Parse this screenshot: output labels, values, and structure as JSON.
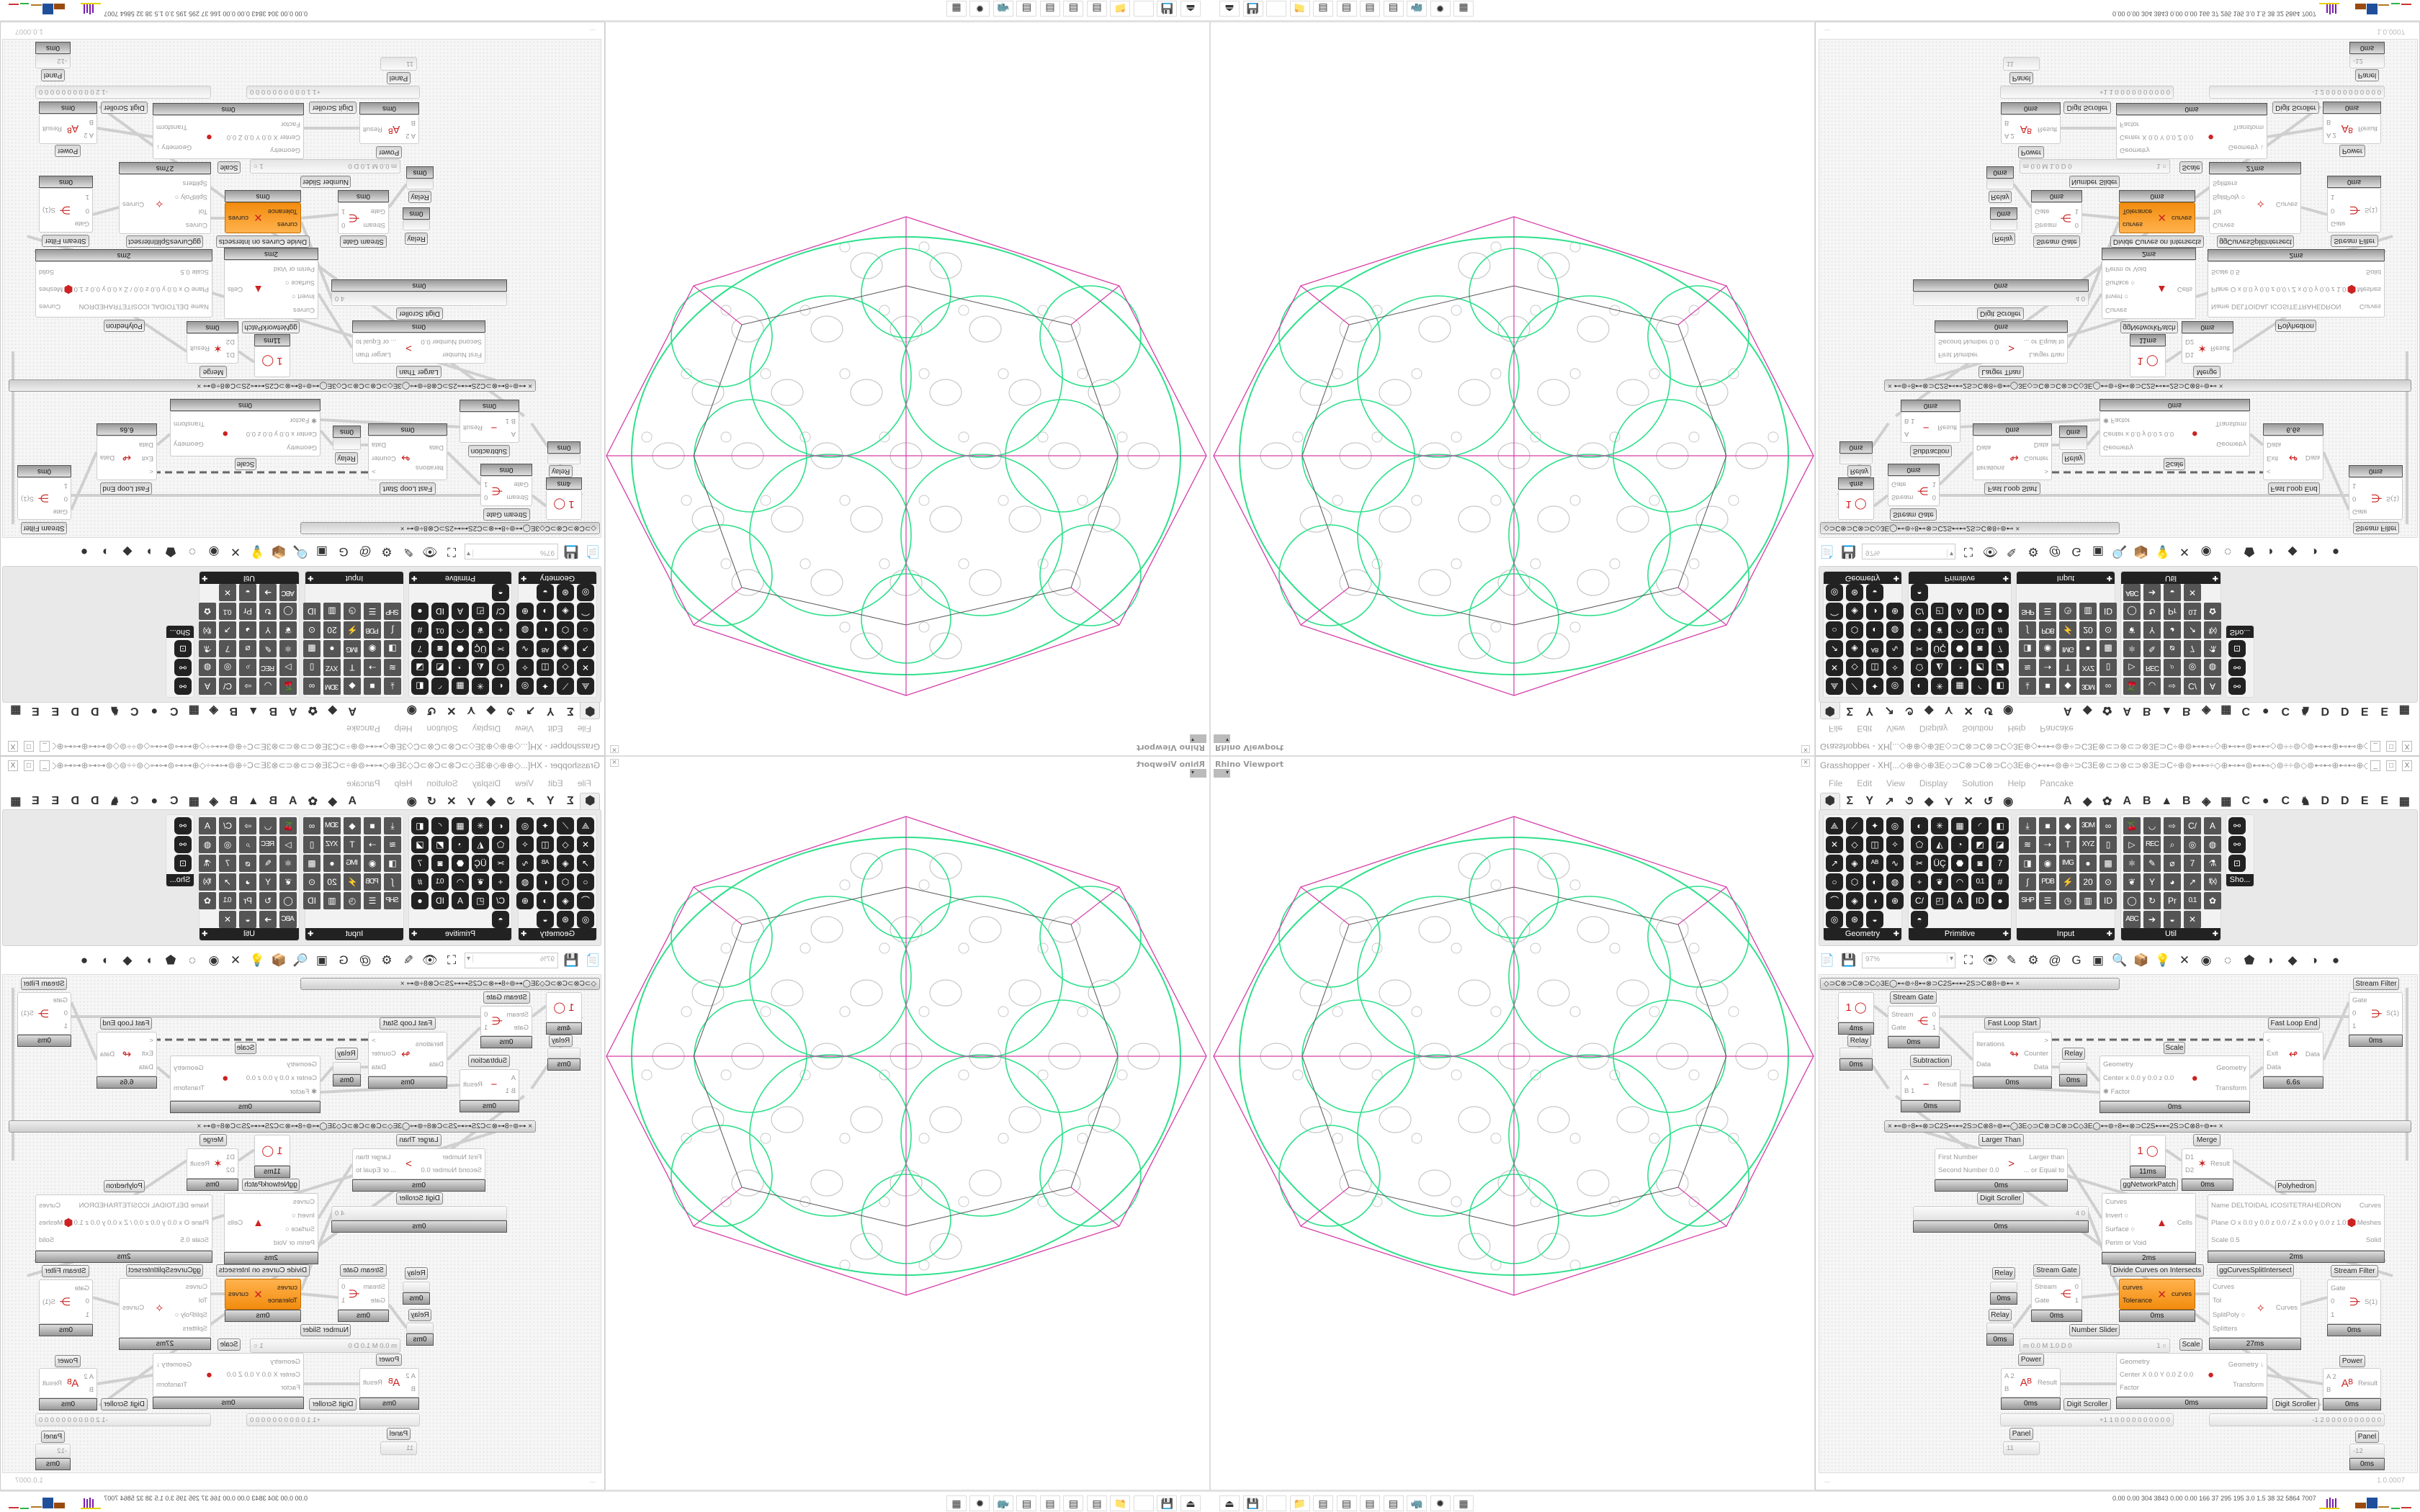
{
  "viewport": {
    "title": "Rhino Viewport",
    "colors": {
      "outer_polygon": "#d63ca8",
      "network": "#2ee08a",
      "circles": "#c8c8c8",
      "inner_polygon": "#555555"
    }
  },
  "taskbar": {
    "icons": [
      "uplink-icon",
      "save-64-icon",
      "blank-icon",
      "folder-icon",
      "notepad-icon",
      "notepad-icon",
      "notepad-icon",
      "notepad-icon",
      "rhino-icon",
      "red-app-icon",
      "calculator-icon"
    ],
    "stats": "0.00 0.00 304 3843 0.00 0.00 166 37 295 195 3.0 1.5 38 32 5864 7007"
  },
  "grasshopper": {
    "title": "Grasshopper - XH[...◇⊕⊕◇⊕3E◇⊃C⊗⊃C⊗⊃C◇3E⊕◇⊷⊷⊚⊕÷⊃C3E⊗⊂⊃⊗⊂⊃⊗3E⊃C÷⊕⊚⊷⊷÷◇⊕⊷⊷⊚⊷⊷◇⊚÷÷⊚◇⊚⊷⊷⊕⊷⊷⊕◇⊷⊷⊚⊕÷⊃C3E⊗⊂⊃⊗⊂...",
    "window_buttons": [
      "_",
      "□",
      "X"
    ],
    "menu": [
      "File",
      "Edit",
      "View",
      "Display",
      "Solution",
      "Help",
      "Pancake"
    ],
    "tabs": [
      "⬢",
      "Σ",
      "Y",
      "↗",
      "૭",
      "◆",
      "⋎",
      "✕",
      "↺",
      "◉",
      "",
      "",
      "A",
      "◆",
      "✿",
      "A",
      "B",
      "▲",
      "B",
      "◈",
      "▦",
      "C",
      "●",
      "C",
      "♞",
      "D",
      "D",
      "E",
      "E",
      "▦"
    ],
    "palette": [
      {
        "label": "Geometry",
        "glyphs": [
          "⟁",
          "⟋",
          "✦",
          "◎",
          "✕",
          "◇",
          "◫",
          "✧",
          "↗",
          "◈",
          "ᴬᴮ",
          "∿",
          "○",
          "⬡",
          "◐",
          "◍",
          "⌒",
          "◈",
          "◑",
          "⊕",
          "◎",
          "⊛",
          "◒"
        ]
      },
      {
        "label": "Primitive",
        "glyphs": [
          "◐",
          "✳",
          "▦",
          "◜",
          "◧",
          "⬠",
          "◭",
          "◔",
          "◩",
          "◪",
          "✂",
          "ÜÇ",
          "⬣",
          "◙",
          "7",
          "+",
          "❦",
          "◠",
          "0.1",
          "#",
          "C/",
          "◰",
          "A",
          "ID",
          "●",
          "◓"
        ]
      },
      {
        "label": "Input",
        "glyphs": [
          "⤓",
          "■",
          "◆",
          "3DM",
          "∞",
          "≋",
          "⇢",
          "T",
          "XYZ",
          "▯",
          "◨",
          "◉",
          "IMG",
          "●",
          "▩",
          "∫",
          "PDB",
          "⚡",
          "20",
          "⊙",
          "SHP",
          "☰",
          "◷",
          "▥",
          "ID"
        ]
      },
      {
        "label": "Util",
        "glyphs": [
          "🍒",
          "◡",
          "⇨",
          "C/",
          "A",
          "▷",
          "REC",
          "⌕",
          "◎",
          "◍",
          "⚛",
          "✎",
          "⌀",
          "7",
          "⚗",
          "❦",
          "Y",
          "◕",
          "↗",
          "f(x)",
          "◯",
          "↻",
          "Pr",
          "0.1",
          "✿",
          "ABC",
          "➔",
          "◒",
          "✕"
        ]
      },
      {
        "label": "Sho...",
        "glyphs": [
          "⚯",
          "⚯",
          "⊡"
        ]
      }
    ],
    "toolbar": {
      "zoom": "97%",
      "icons": [
        "new-file-icon",
        "save-icon",
        "zoom-extents-icon",
        "preview-eye-icon",
        "sketch-icon",
        "bake-icon",
        "email-icon",
        "gha-icon",
        "image-icon",
        "search-icon",
        "package-icon",
        "bulb-icon",
        "wire-icon",
        "bean-icon",
        "ring-icon",
        "red-gem-icon",
        "teal-icon",
        "green-icon",
        "orange-sphere-icon",
        "blue-sphere-icon"
      ]
    },
    "canvas": {
      "groups": [
        "◇⊃C⊗⊃C⊗⊃C◇3E◯⊷⊚÷8⊷⊗⊃C2S⊷⊷2S⊃C⊗8÷⊚⊷         ×",
        "×       ⊷⊚÷8⊷⊗⊃C2S⊷⊷2S⊃C⊗8÷⊚⊷◯3E◇⊃C⊗⊃C⊗⊃C◇3E◯⊷⊚÷8⊷⊗⊃C2S⊷⊷2S⊃C⊗8÷⊚⊷       ×"
      ],
      "nodes": [
        {
          "label": "",
          "inputs": [
            " ",
            " "
          ],
          "outputs": [],
          "icon": "1 ◯",
          "time": "4ms"
        },
        {
          "label": "Relay",
          "inputs": [],
          "outputs": [],
          "icon": "",
          "time": "0ms"
        },
        {
          "label": "Stream Gate",
          "inputs": [
            "Stream",
            "Gate"
          ],
          "outputs": [
            "0",
            "1"
          ],
          "icon": "⋲",
          "time": "0ms"
        },
        {
          "label": "Subtraction",
          "inputs": [
            "A",
            "B 1"
          ],
          "outputs": [
            "Result"
          ],
          "icon": "−",
          "time": "0ms"
        },
        {
          "label": "Fast Loop Start",
          "inputs": [
            "Iterations",
            "Data"
          ],
          "outputs": [
            ">",
            "Counter",
            "Data"
          ],
          "icon": "↬",
          "time": "0ms"
        },
        {
          "label": "Relay",
          "inputs": [],
          "outputs": [],
          "icon": "",
          "time": "0ms"
        },
        {
          "label": "Scale",
          "inputs": [
            "Geometry",
            "Center x 0.0 y 0.0 z 0.0",
            "✱ Factor"
          ],
          "outputs": [
            "Geometry",
            "Transform"
          ],
          "icon": "●",
          "time": "0ms"
        },
        {
          "label": "Fast Loop End",
          "inputs": [
            "<",
            "Exit",
            "Data"
          ],
          "outputs": [
            "Data"
          ],
          "icon": "↫",
          "time": "6.6s"
        },
        {
          "label": "Stream Filter",
          "inputs": [
            "Gate",
            "0",
            "1"
          ],
          "outputs": [
            "S(1)"
          ],
          "icon": "⋺",
          "time": "0ms"
        },
        {
          "label": "Larger Than",
          "inputs": [
            "First Number",
            "Second Number 0.0"
          ],
          "outputs": [
            "Larger than",
            "... or Equal to"
          ],
          "icon": ">",
          "time": "0ms"
        },
        {
          "label": "",
          "inputs": [
            " ",
            " "
          ],
          "outputs": [],
          "icon": "1 ◯",
          "time": "11ms"
        },
        {
          "label": "Merge",
          "inputs": [
            "D1",
            "D2"
          ],
          "outputs": [
            "Result"
          ],
          "icon": "✶",
          "time": "0ms"
        },
        {
          "label": "Digit Scroller",
          "inputs": [],
          "outputs": [
            "4  0"
          ],
          "icon": "",
          "time": "0ms"
        },
        {
          "label": "ggNetworkPatch",
          "inputs": [
            "Curves",
            "Invert ○",
            "Surface ○",
            "Perim or Void"
          ],
          "outputs": [
            "Cells"
          ],
          "icon": "▲",
          "time": "2ms"
        },
        {
          "label": "Polyhedron",
          "inputs": [
            "Name DELTOIDAL ICOSITETRAHEDRON",
            "Plane   O x 0.0 y 0.0 z 0.0 / Z x 0.0 y 0.0 z 1.0",
            "Scale 0.5"
          ],
          "outputs": [
            "Curves",
            "Meshes",
            "Solid"
          ],
          "icon": "⬢",
          "time": "2ms"
        },
        {
          "label": "Relay",
          "inputs": [],
          "outputs": [],
          "icon": "",
          "time": "0ms"
        },
        {
          "label": "Stream Gate",
          "inputs": [
            "Stream",
            "Gate"
          ],
          "outputs": [
            "0",
            "1"
          ],
          "icon": "⋲",
          "time": "0ms"
        },
        {
          "label": "Divide Curves on Intersects",
          "inputs": [
            "curves",
            "Tolerance"
          ],
          "outputs": [
            "curves"
          ],
          "icon": "✕",
          "time": "0ms"
        },
        {
          "label": "ggCurvesSplitIntersect",
          "inputs": [
            "Curves",
            "Tol",
            "SplitPoly ○",
            "Splitters"
          ],
          "outputs": [
            "Curves"
          ],
          "icon": "✧",
          "time": "27ms"
        },
        {
          "label": "Stream Filter",
          "inputs": [
            "Gate",
            "0",
            "1"
          ],
          "outputs": [
            "S(1)"
          ],
          "icon": "⋺",
          "time": "0ms"
        },
        {
          "label": "Relay",
          "inputs": [],
          "outputs": [],
          "icon": "",
          "time": "0ms"
        },
        {
          "label": "Number Slider",
          "inputs": [
            "m 0.0 M 1.0 D 0"
          ],
          "outputs": [
            "1 ○"
          ],
          "icon": "",
          "time": ""
        },
        {
          "label": "Scale",
          "inputs": [
            "Geometry",
            "Center X 0.0 Y 0.0 Z 0.0",
            "Factor"
          ],
          "outputs": [
            "Geometry ↓",
            "Transform"
          ],
          "icon": "●",
          "time": "0ms"
        },
        {
          "label": "Power",
          "inputs": [
            "A 2",
            "B"
          ],
          "outputs": [
            "Result"
          ],
          "icon": "Aᴮ",
          "time": "0ms"
        },
        {
          "label": "Power",
          "inputs": [
            "A 2",
            "B"
          ],
          "outputs": [
            "Result"
          ],
          "icon": "Aᴮ",
          "time": "0ms"
        },
        {
          "label": "Digit Scroller",
          "inputs": [],
          "outputs": [
            "+1 1 0 0 0 0 0 0 0 0 0 0"
          ],
          "icon": "",
          "time": ""
        },
        {
          "label": "Digit Scroller",
          "inputs": [],
          "outputs": [
            "-1 2 0 0 0 0 0 0 0 0 0 0"
          ],
          "icon": "",
          "time": ""
        },
        {
          "label": "Panel",
          "inputs": [
            "11"
          ],
          "outputs": [],
          "icon": "",
          "time": ""
        },
        {
          "label": "Panel",
          "inputs": [
            "-12"
          ],
          "outputs": [],
          "icon": "",
          "time": "0ms"
        }
      ]
    },
    "status": {
      "left": "...",
      "version": "1.0.0007"
    }
  }
}
